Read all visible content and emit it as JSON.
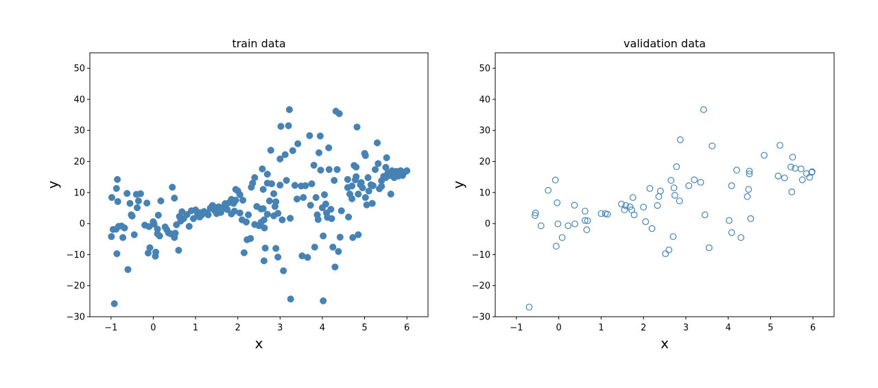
{
  "chart_data": [
    {
      "type": "scatter",
      "title": "train data",
      "xlabel": "x",
      "ylabel": "y",
      "xlim": [
        -1.5,
        6.5
      ],
      "ylim": [
        -30,
        55
      ],
      "xticks": [
        "−1",
        "0",
        "1",
        "2",
        "3",
        "4",
        "5",
        "6"
      ],
      "yticks": [
        "−30",
        "−20",
        "−10",
        "0",
        "10",
        "20",
        "30",
        "40",
        "50"
      ],
      "grid": false,
      "marker": "filled",
      "color": "#4682b4",
      "points": [
        [
          -0.98,
          8.4
        ],
        [
          -0.99,
          -4.2
        ],
        [
          -0.95,
          -1.9
        ],
        [
          -0.92,
          -25.8
        ],
        [
          -0.87,
          11.3
        ],
        [
          -0.85,
          14.2
        ],
        [
          -0.84,
          7.1
        ],
        [
          -0.86,
          -9.7
        ],
        [
          -0.88,
          -1.8
        ],
        [
          -0.82,
          -0.9
        ],
        [
          -0.75,
          -0.8
        ],
        [
          -0.72,
          -4.5
        ],
        [
          -0.68,
          -1.4
        ],
        [
          -0.62,
          9.7
        ],
        [
          -0.6,
          -14.8
        ],
        [
          -0.55,
          6.5
        ],
        [
          -0.52,
          2.8
        ],
        [
          -0.5,
          2.4
        ],
        [
          -0.45,
          -3.6
        ],
        [
          -0.4,
          9.4
        ],
        [
          -0.38,
          5.1
        ],
        [
          -0.35,
          7.3
        ],
        [
          -0.3,
          9.6
        ],
        [
          -0.2,
          -0.5
        ],
        [
          -0.15,
          6.6
        ],
        [
          -0.1,
          -1.0
        ],
        [
          -0.12,
          -9.5
        ],
        [
          -0.08,
          -7.8
        ],
        [
          0.0,
          0.6
        ],
        [
          0.02,
          -0.2
        ],
        [
          0.05,
          -10.5
        ],
        [
          0.06,
          -9.2
        ],
        [
          0.1,
          -1.8
        ],
        [
          0.1,
          -3.3
        ],
        [
          0.12,
          2.7
        ],
        [
          0.15,
          -4.0
        ],
        [
          0.18,
          7.3
        ],
        [
          0.28,
          -1.1
        ],
        [
          0.32,
          -2.0
        ],
        [
          0.36,
          -3.0
        ],
        [
          0.42,
          -3.3
        ],
        [
          0.45,
          11.7
        ],
        [
          0.5,
          8.2
        ],
        [
          0.5,
          -4.5
        ],
        [
          0.52,
          -3.1
        ],
        [
          0.55,
          -0.4
        ],
        [
          0.6,
          -8.6
        ],
        [
          0.62,
          2.3
        ],
        [
          0.65,
          0.8
        ],
        [
          0.68,
          3.8
        ],
        [
          0.72,
          1.6
        ],
        [
          0.8,
          2.9
        ],
        [
          0.85,
          -0.9
        ],
        [
          0.9,
          4.1
        ],
        [
          0.95,
          1.6
        ],
        [
          1.0,
          4.4
        ],
        [
          1.05,
          3.1
        ],
        [
          1.1,
          2.1
        ],
        [
          1.15,
          2.8
        ],
        [
          1.2,
          3.9
        ],
        [
          1.28,
          3.4
        ],
        [
          1.35,
          5.0
        ],
        [
          1.4,
          5.8
        ],
        [
          1.45,
          4.2
        ],
        [
          1.5,
          4.6
        ],
        [
          1.55,
          5.4
        ],
        [
          1.6,
          3.6
        ],
        [
          1.65,
          5.2
        ],
        [
          1.72,
          6.0
        ],
        [
          1.8,
          6.8
        ],
        [
          1.85,
          7.8
        ],
        [
          1.9,
          6.5
        ],
        [
          1.92,
          4.0
        ],
        [
          1.95,
          11.0
        ],
        [
          2.0,
          10.5
        ],
        [
          2.05,
          9.3
        ],
        [
          2.05,
          3.4
        ],
        [
          2.12,
          7.5
        ],
        [
          2.2,
          0.5
        ],
        [
          2.25,
          2.8
        ],
        [
          2.15,
          -9.4
        ],
        [
          2.22,
          -5.2
        ],
        [
          2.3,
          -4.8
        ],
        [
          2.32,
          11.7
        ],
        [
          2.35,
          13.0
        ],
        [
          2.4,
          14.8
        ],
        [
          2.45,
          5.5
        ],
        [
          2.5,
          -0.7
        ],
        [
          2.55,
          4.7
        ],
        [
          2.58,
          17.6
        ],
        [
          2.6,
          11.0
        ],
        [
          2.62,
          1.2
        ],
        [
          2.63,
          -1.4
        ],
        [
          2.65,
          -7.9
        ],
        [
          2.62,
          -12.0
        ],
        [
          2.7,
          15.9
        ],
        [
          2.78,
          23.6
        ],
        [
          2.85,
          9.6
        ],
        [
          2.88,
          5.5
        ],
        [
          2.9,
          -8.0
        ],
        [
          2.95,
          -10.8
        ],
        [
          3.0,
          20.8
        ],
        [
          3.02,
          31.3
        ],
        [
          3.05,
          1.2
        ],
        [
          3.08,
          -15.2
        ],
        [
          3.12,
          22.2
        ],
        [
          3.15,
          13.9
        ],
        [
          3.2,
          31.5
        ],
        [
          3.22,
          36.7
        ],
        [
          3.24,
          1.7
        ],
        [
          3.25,
          -24.3
        ],
        [
          3.3,
          23.5
        ],
        [
          3.35,
          12.3
        ],
        [
          3.4,
          7.9
        ],
        [
          3.42,
          25.7
        ],
        [
          3.5,
          12.1
        ],
        [
          3.52,
          -10.4
        ],
        [
          3.55,
          8.4
        ],
        [
          3.65,
          -10.9
        ],
        [
          3.7,
          28.3
        ],
        [
          3.72,
          5.9
        ],
        [
          3.75,
          12.8
        ],
        [
          3.8,
          18.8
        ],
        [
          3.82,
          -7.6
        ],
        [
          3.85,
          8.4
        ],
        [
          3.88,
          2.8
        ],
        [
          3.9,
          1.3
        ],
        [
          3.92,
          22.8
        ],
        [
          3.95,
          28.2
        ],
        [
          3.96,
          17.2
        ],
        [
          4.0,
          5.1
        ],
        [
          4.02,
          -4.0
        ],
        [
          4.02,
          -24.9
        ],
        [
          4.05,
          9.3
        ],
        [
          4.08,
          6.3
        ],
        [
          4.1,
          3.4
        ],
        [
          4.12,
          2.0
        ],
        [
          4.15,
          24.4
        ],
        [
          4.16,
          17.4
        ],
        [
          4.2,
          4.6
        ],
        [
          4.22,
          1.6
        ],
        [
          4.25,
          -7.6
        ],
        [
          4.28,
          13.9
        ],
        [
          4.3,
          -14.0
        ],
        [
          4.32,
          36.2
        ],
        [
          4.35,
          17.4
        ],
        [
          4.38,
          -9.0
        ],
        [
          4.4,
          35.4
        ],
        [
          4.42,
          -4.4
        ],
        [
          4.45,
          4.1
        ],
        [
          4.6,
          14.2
        ],
        [
          4.62,
          2.1
        ],
        [
          4.65,
          9.5
        ],
        [
          4.7,
          12.1
        ],
        [
          4.72,
          -4.5
        ],
        [
          4.75,
          18.7
        ],
        [
          4.78,
          14.1
        ],
        [
          4.8,
          18.2
        ],
        [
          4.82,
          31.1
        ],
        [
          4.85,
          9.5
        ],
        [
          4.85,
          -3.6
        ],
        [
          4.9,
          12.5
        ],
        [
          4.95,
          11.5
        ],
        [
          5.0,
          22.6
        ],
        [
          5.02,
          8.4
        ],
        [
          5.05,
          6.0
        ],
        [
          5.08,
          14.8
        ],
        [
          5.1,
          10.5
        ],
        [
          5.15,
          12.5
        ],
        [
          5.18,
          6.5
        ],
        [
          5.2,
          12.2
        ],
        [
          5.25,
          17.4
        ],
        [
          5.3,
          26.0
        ],
        [
          5.32,
          19.3
        ],
        [
          5.35,
          11.2
        ],
        [
          5.4,
          13.8
        ],
        [
          5.45,
          15.2
        ],
        [
          5.5,
          18.1
        ],
        [
          5.52,
          21.2
        ],
        [
          5.55,
          16.3
        ],
        [
          5.6,
          15.5
        ],
        [
          5.62,
          9.5
        ],
        [
          5.65,
          17.0
        ],
        [
          5.7,
          14.8
        ],
        [
          5.75,
          16.8
        ],
        [
          5.8,
          15.3
        ],
        [
          5.85,
          17.0
        ],
        [
          5.9,
          15.5
        ],
        [
          5.95,
          16.6
        ],
        [
          6.0,
          17.0
        ],
        [
          5.72,
          15.8
        ],
        [
          5.5,
          14.8
        ],
        [
          5.4,
          12.0
        ],
        [
          5.02,
          21.9
        ],
        [
          4.92,
          13.2
        ],
        [
          4.8,
          15.1
        ],
        [
          4.7,
          8.0
        ],
        [
          4.6,
          11.6
        ],
        [
          3.6,
          12.2
        ],
        [
          3.0,
          12.4
        ],
        [
          2.8,
          12.8
        ],
        [
          2.7,
          13.0
        ],
        [
          2.9,
          7.0
        ],
        [
          2.75,
          7.3
        ],
        [
          2.55,
          0.4
        ],
        [
          2.4,
          -0.3
        ],
        [
          2.6,
          4.8
        ],
        [
          2.7,
          3.0
        ],
        [
          2.85,
          2.5
        ],
        [
          2.95,
          3.3
        ],
        [
          2.1,
          1.2
        ],
        [
          1.95,
          7.5
        ],
        [
          1.85,
          3.1
        ],
        [
          1.7,
          6.4
        ],
        [
          1.75,
          4.5
        ],
        [
          1.6,
          5.0
        ],
        [
          1.5,
          3.2
        ],
        [
          1.45,
          5.3
        ],
        [
          1.3,
          2.8
        ],
        [
          1.1,
          3.5
        ]
      ]
    },
    {
      "type": "scatter",
      "title": "validation data",
      "xlabel": "x",
      "ylabel": "y",
      "xlim": [
        -1.5,
        6.5
      ],
      "ylim": [
        -30,
        55
      ],
      "xticks": [
        "−1",
        "0",
        "1",
        "2",
        "3",
        "4",
        "5",
        "6"
      ],
      "yticks": [
        "−30",
        "−20",
        "−10",
        "0",
        "10",
        "20",
        "30",
        "40",
        "50"
      ],
      "grid": false,
      "marker": "hollow",
      "color": "#4682b4",
      "points": [
        [
          -0.7,
          -26.9
        ],
        [
          -0.55,
          3.4
        ],
        [
          -0.56,
          2.6
        ],
        [
          -0.42,
          -0.7
        ],
        [
          -0.25,
          10.7
        ],
        [
          -0.08,
          14.0
        ],
        [
          -0.04,
          6.7
        ],
        [
          -0.02,
          -0.1
        ],
        [
          -0.06,
          -7.3
        ],
        [
          0.08,
          -4.5
        ],
        [
          0.22,
          -0.7
        ],
        [
          0.37,
          5.9
        ],
        [
          0.38,
          -0.1
        ],
        [
          0.62,
          4.0
        ],
        [
          0.62,
          1.0
        ],
        [
          0.68,
          0.9
        ],
        [
          0.66,
          -2.0
        ],
        [
          1.0,
          3.2
        ],
        [
          1.1,
          3.2
        ],
        [
          1.15,
          3.0
        ],
        [
          1.48,
          6.3
        ],
        [
          1.55,
          4.4
        ],
        [
          1.58,
          5.8
        ],
        [
          1.68,
          5.4
        ],
        [
          1.72,
          4.4
        ],
        [
          1.75,
          8.4
        ],
        [
          1.78,
          2.8
        ],
        [
          2.0,
          5.3
        ],
        [
          2.05,
          0.6
        ],
        [
          2.15,
          11.3
        ],
        [
          2.2,
          -1.6
        ],
        [
          2.33,
          5.8
        ],
        [
          2.36,
          8.7
        ],
        [
          2.4,
          10.5
        ],
        [
          2.52,
          -9.7
        ],
        [
          2.6,
          -8.5
        ],
        [
          2.65,
          13.9
        ],
        [
          2.7,
          -4.2
        ],
        [
          2.72,
          11.5
        ],
        [
          2.74,
          9.1
        ],
        [
          2.78,
          18.3
        ],
        [
          2.85,
          7.3
        ],
        [
          2.87,
          27.0
        ],
        [
          3.07,
          12.2
        ],
        [
          3.2,
          14.1
        ],
        [
          3.35,
          13.3
        ],
        [
          3.42,
          36.7
        ],
        [
          3.45,
          2.8
        ],
        [
          3.55,
          -7.8
        ],
        [
          3.62,
          25.0
        ],
        [
          4.02,
          1.0
        ],
        [
          4.08,
          -2.9
        ],
        [
          4.08,
          12.2
        ],
        [
          4.2,
          17.2
        ],
        [
          4.3,
          -4.5
        ],
        [
          4.45,
          8.7
        ],
        [
          4.48,
          11.0
        ],
        [
          4.5,
          16.9
        ],
        [
          4.5,
          16.0
        ],
        [
          4.53,
          1.6
        ],
        [
          4.85,
          22.0
        ],
        [
          5.18,
          15.3
        ],
        [
          5.22,
          25.2
        ],
        [
          5.33,
          14.7
        ],
        [
          5.48,
          18.2
        ],
        [
          5.5,
          10.2
        ],
        [
          5.52,
          21.4
        ],
        [
          5.58,
          17.8
        ],
        [
          5.72,
          17.6
        ],
        [
          5.75,
          14.1
        ],
        [
          5.85,
          16.1
        ],
        [
          5.92,
          14.9
        ],
        [
          5.97,
          16.5
        ],
        [
          5.98,
          16.7
        ]
      ]
    }
  ]
}
